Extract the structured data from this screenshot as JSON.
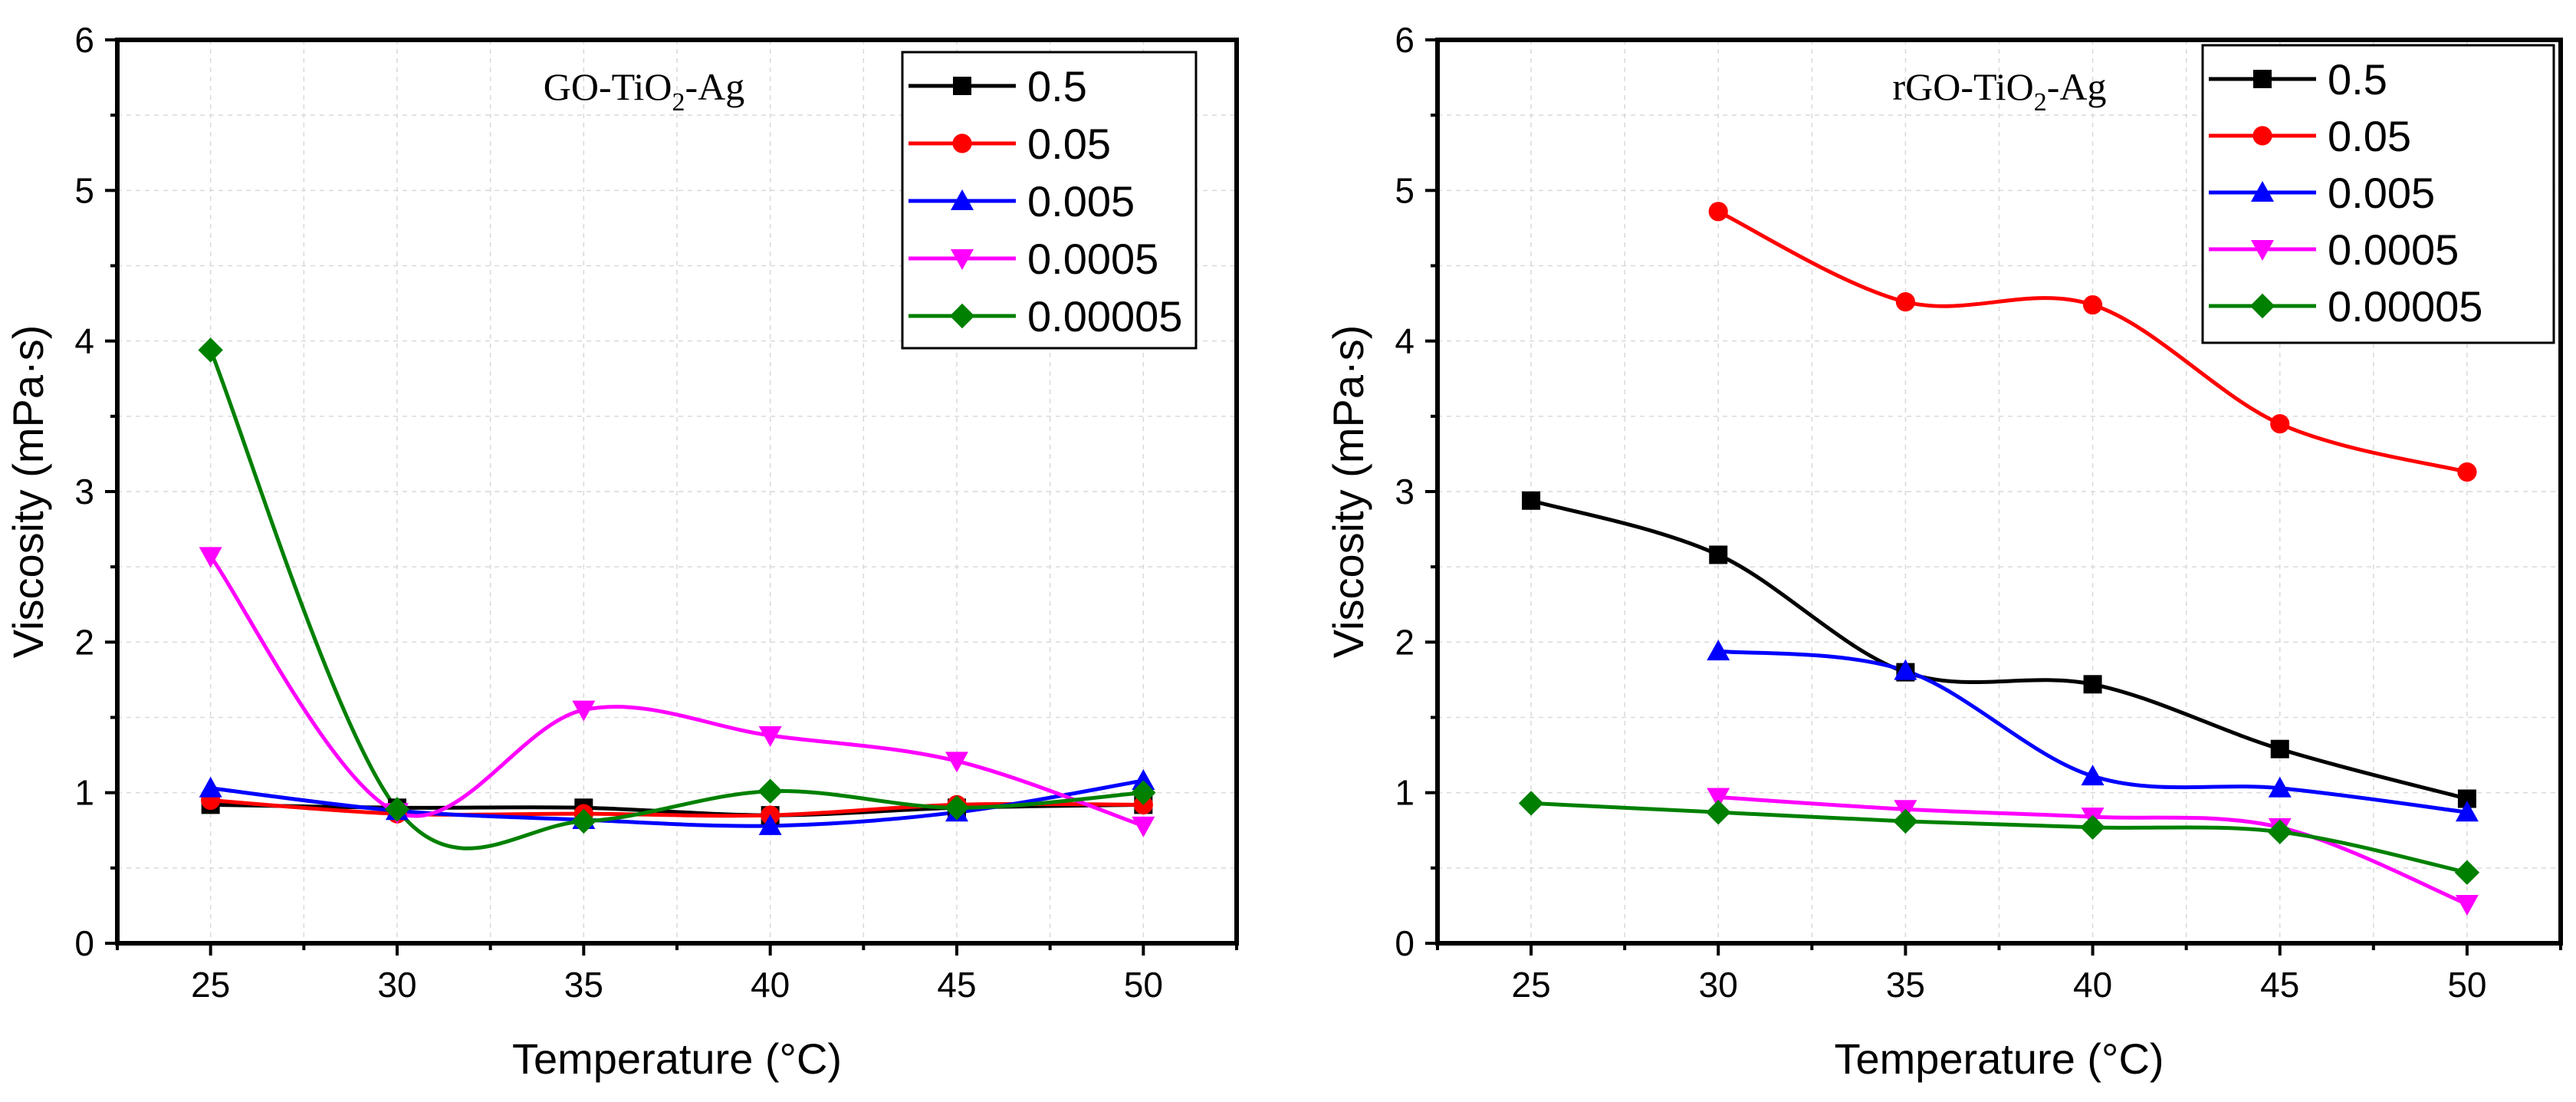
{
  "chart_data": [
    {
      "type": "scatter",
      "title": "GO-TiO",
      "title_sub": "2",
      "title_suffix": "-Ag",
      "xlabel": "Temperature (°C)",
      "ylabel": "Viscosity (mPa·s)",
      "xlim": [
        22.5,
        52.5
      ],
      "ylim": [
        0,
        6
      ],
      "xticks": [
        25,
        30,
        35,
        40,
        45,
        50
      ],
      "yticks": [
        0,
        1,
        2,
        3,
        4,
        5,
        6
      ],
      "grid": true,
      "legend_position": "top-right",
      "series": [
        {
          "name": "0.5",
          "color": "#000000",
          "marker": "square",
          "x": [
            25,
            30,
            35,
            40,
            45,
            50
          ],
          "values": [
            0.92,
            0.9,
            0.9,
            0.85,
            0.9,
            0.92
          ]
        },
        {
          "name": "0.05",
          "color": "#ff0000",
          "marker": "circle",
          "x": [
            25,
            30,
            35,
            40,
            45,
            50
          ],
          "values": [
            0.95,
            0.86,
            0.86,
            0.85,
            0.92,
            0.92
          ]
        },
        {
          "name": "0.005",
          "color": "#0000ff",
          "marker": "triangle-up",
          "x": [
            25,
            30,
            35,
            40,
            45,
            50
          ],
          "values": [
            1.03,
            0.88,
            0.82,
            0.78,
            0.87,
            1.08
          ]
        },
        {
          "name": "0.0005",
          "color": "#ff00ff",
          "marker": "triangle-down",
          "x": [
            25,
            30,
            35,
            40,
            45,
            50
          ],
          "values": [
            2.57,
            0.87,
            1.55,
            1.38,
            1.21,
            0.78
          ]
        },
        {
          "name": "0.00005",
          "color": "#008000",
          "marker": "diamond",
          "x": [
            25,
            30,
            35,
            40,
            45,
            50
          ],
          "values": [
            3.94,
            0.89,
            0.81,
            1.01,
            0.9,
            1.0
          ]
        }
      ]
    },
    {
      "type": "scatter",
      "title": "rGO-TiO",
      "title_sub": "2",
      "title_suffix": "-Ag",
      "xlabel": "Temperature (°C)",
      "ylabel": "Viscosity (mPa·s)",
      "xlim": [
        22.5,
        52.5
      ],
      "ylim": [
        0,
        6
      ],
      "xticks": [
        25,
        30,
        35,
        40,
        45,
        50
      ],
      "yticks": [
        0,
        1,
        2,
        3,
        4,
        5,
        6
      ],
      "grid": true,
      "legend_position": "top-right",
      "series": [
        {
          "name": "0.5",
          "color": "#000000",
          "marker": "square",
          "x": [
            25,
            30,
            35,
            40,
            45,
            50
          ],
          "values": [
            2.94,
            2.58,
            1.8,
            1.72,
            1.29,
            0.96
          ]
        },
        {
          "name": "0.05",
          "color": "#ff0000",
          "marker": "circle",
          "x": [
            30,
            35,
            40,
            45,
            50
          ],
          "values": [
            4.86,
            4.26,
            4.24,
            3.45,
            3.13
          ]
        },
        {
          "name": "0.005",
          "color": "#0000ff",
          "marker": "triangle-up",
          "x": [
            30,
            35,
            40,
            45,
            50
          ],
          "values": [
            1.94,
            1.81,
            1.11,
            1.03,
            0.87
          ]
        },
        {
          "name": "0.0005",
          "color": "#ff00ff",
          "marker": "triangle-down",
          "x": [
            30,
            35,
            40,
            45,
            50
          ],
          "values": [
            0.97,
            0.89,
            0.84,
            0.77,
            0.26
          ]
        },
        {
          "name": "0.00005",
          "color": "#008000",
          "marker": "diamond",
          "x": [
            25,
            30,
            35,
            40,
            45,
            50
          ],
          "values": [
            0.93,
            0.87,
            0.81,
            0.77,
            0.74,
            0.47
          ]
        }
      ]
    }
  ]
}
